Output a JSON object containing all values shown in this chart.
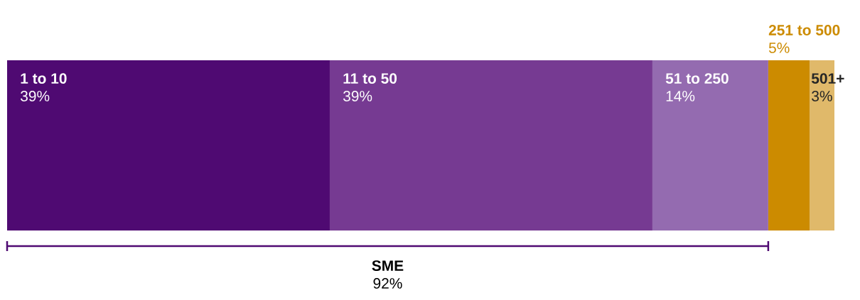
{
  "chart_data": {
    "type": "bar",
    "orientation": "horizontal",
    "stacked": true,
    "categories": [
      null
    ],
    "series": [
      {
        "name": "1 to 10",
        "color": "#4f0a72",
        "values": [
          39
        ],
        "value_labels": [
          "39%"
        ]
      },
      {
        "name": "11 to 50",
        "color": "#763a92",
        "values": [
          39
        ],
        "value_labels": [
          "39%"
        ]
      },
      {
        "name": "51 to 250",
        "color": "#946bb0",
        "values": [
          14
        ],
        "value_labels": [
          "14%"
        ]
      },
      {
        "name": "251 to 500",
        "color": "#cc8b00",
        "values": [
          5
        ],
        "value_labels": [
          "5%"
        ]
      },
      {
        "name": "501+",
        "color": "#e0b96a",
        "values": [
          3
        ],
        "value_labels": [
          "3%"
        ]
      }
    ],
    "annotations": [
      "SME",
      "92%"
    ]
  }
}
